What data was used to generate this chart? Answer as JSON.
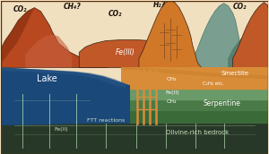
{
  "bg_color": "#f0e0c0",
  "mountain1_color": "#b84820",
  "mountain1_shadow": "#8a3010",
  "mountain2_color": "#c05828",
  "mountain3_color": "#d07828",
  "mountain3_light": "#e09848",
  "mountain_teal": "#7a9e90",
  "mountain_teal_dark": "#5a7e70",
  "lake_color": "#1a4878",
  "lake_top": "#2a5888",
  "smectite_color": "#d88c38",
  "serpentine1_color": "#6a9a68",
  "serpentine2_color": "#4a7a48",
  "serpentine3_color": "#3a6a38",
  "bedrock_color": "#283828",
  "bedrock2_color": "#1a2818",
  "vein_color": "#d88c38",
  "crack_color": "#8aaa88",
  "border_color": "#3a2010",
  "text_dark": "#1a1008",
  "text_white": "#ffffff",
  "text_cream": "#d0e0c0",
  "labels": {
    "co2_1": "CO₂",
    "ch4_q": "CH₄?",
    "co2_2": "CO₂",
    "h2_q": "H₂?",
    "co2_3": "CO₂",
    "feIII": "Fe(III)",
    "lake": "Lake",
    "smectite": "Smectite",
    "ch4_1": "CH₄",
    "c2h6": "C₂H₆ etc.",
    "feII_1": "Fe(II)",
    "ch4_2": "CH₄",
    "serpentine": "Serpentine",
    "ftt": "FTT reactions",
    "feII_2": "Fe(II)",
    "olivine": "Olivine-rich bedrock"
  }
}
